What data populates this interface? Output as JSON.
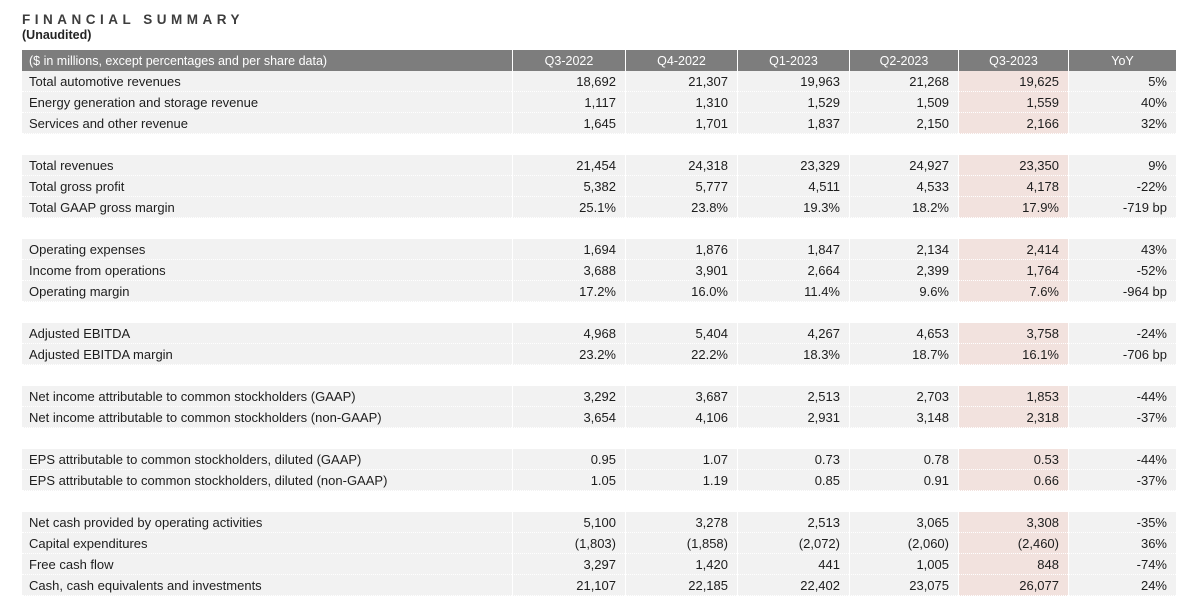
{
  "page": {
    "title": "FINANCIAL SUMMARY",
    "subtitle": "(Unaudited)"
  },
  "colors": {
    "header_bg": "#7d7d7d",
    "header_text": "#ffffff",
    "row_bg": "#f2f2f2",
    "highlight_bg": "#f2e2de",
    "text_color": "#1d1d1d"
  },
  "table": {
    "label_header": "($ in millions, except percentages and per share data)",
    "columns": [
      "Q3-2022",
      "Q4-2022",
      "Q1-2023",
      "Q2-2023",
      "Q3-2023",
      "YoY"
    ],
    "highlight_column": "Q3-2023",
    "highlight_column_index": 4,
    "sections": [
      {
        "name": "revenues",
        "rows": [
          {
            "label": "Total automotive revenues",
            "values": [
              "18,692",
              "21,307",
              "19,963",
              "21,268",
              "19,625",
              "5%"
            ]
          },
          {
            "label": "Energy generation and storage revenue",
            "values": [
              "1,117",
              "1,310",
              "1,529",
              "1,509",
              "1,559",
              "40%"
            ]
          },
          {
            "label": "Services and other revenue",
            "values": [
              "1,645",
              "1,701",
              "1,837",
              "2,150",
              "2,166",
              "32%"
            ]
          }
        ]
      },
      {
        "name": "totals",
        "rows": [
          {
            "label": "Total revenues",
            "values": [
              "21,454",
              "24,318",
              "23,329",
              "24,927",
              "23,350",
              "9%"
            ]
          },
          {
            "label": "Total gross profit",
            "values": [
              "5,382",
              "5,777",
              "4,511",
              "4,533",
              "4,178",
              "-22%"
            ]
          },
          {
            "label": "Total GAAP gross margin",
            "values": [
              "25.1%",
              "23.8%",
              "19.3%",
              "18.2%",
              "17.9%",
              "-719 bp"
            ]
          }
        ]
      },
      {
        "name": "operations",
        "rows": [
          {
            "label": "Operating expenses",
            "values": [
              "1,694",
              "1,876",
              "1,847",
              "2,134",
              "2,414",
              "43%"
            ]
          },
          {
            "label": "Income from operations",
            "values": [
              "3,688",
              "3,901",
              "2,664",
              "2,399",
              "1,764",
              "-52%"
            ]
          },
          {
            "label": "Operating margin",
            "values": [
              "17.2%",
              "16.0%",
              "11.4%",
              "9.6%",
              "7.6%",
              "-964 bp"
            ]
          }
        ]
      },
      {
        "name": "ebitda",
        "rows": [
          {
            "label": "Adjusted EBITDA",
            "values": [
              "4,968",
              "5,404",
              "4,267",
              "4,653",
              "3,758",
              "-24%"
            ]
          },
          {
            "label": "Adjusted EBITDA margin",
            "values": [
              "23.2%",
              "22.2%",
              "18.3%",
              "18.7%",
              "16.1%",
              "-706 bp"
            ]
          }
        ]
      },
      {
        "name": "net-income",
        "rows": [
          {
            "label": "Net income attributable to common stockholders (GAAP)",
            "values": [
              "3,292",
              "3,687",
              "2,513",
              "2,703",
              "1,853",
              "-44%"
            ]
          },
          {
            "label": "Net income attributable to common stockholders (non-GAAP)",
            "values": [
              "3,654",
              "4,106",
              "2,931",
              "3,148",
              "2,318",
              "-37%"
            ]
          }
        ]
      },
      {
        "name": "eps",
        "rows": [
          {
            "label": "EPS attributable to common stockholders, diluted (GAAP)",
            "values": [
              "0.95",
              "1.07",
              "0.73",
              "0.78",
              "0.53",
              "-44%"
            ]
          },
          {
            "label": "EPS attributable to common stockholders, diluted (non-GAAP)",
            "values": [
              "1.05",
              "1.19",
              "0.85",
              "0.91",
              "0.66",
              "-37%"
            ]
          }
        ]
      },
      {
        "name": "cash-flow",
        "rows": [
          {
            "label": "Net cash provided by operating activities",
            "values": [
              "5,100",
              "3,278",
              "2,513",
              "3,065",
              "3,308",
              "-35%"
            ]
          },
          {
            "label": "Capital expenditures",
            "values": [
              "(1,803)",
              "(1,858)",
              "(2,072)",
              "(2,060)",
              "(2,460)",
              "36%"
            ]
          },
          {
            "label": "Free cash flow",
            "values": [
              "3,297",
              "1,420",
              "441",
              "1,005",
              "848",
              "-74%"
            ]
          },
          {
            "label": "Cash, cash equivalents and investments",
            "values": [
              "21,107",
              "22,185",
              "22,402",
              "23,075",
              "26,077",
              "24%"
            ]
          }
        ]
      }
    ]
  }
}
